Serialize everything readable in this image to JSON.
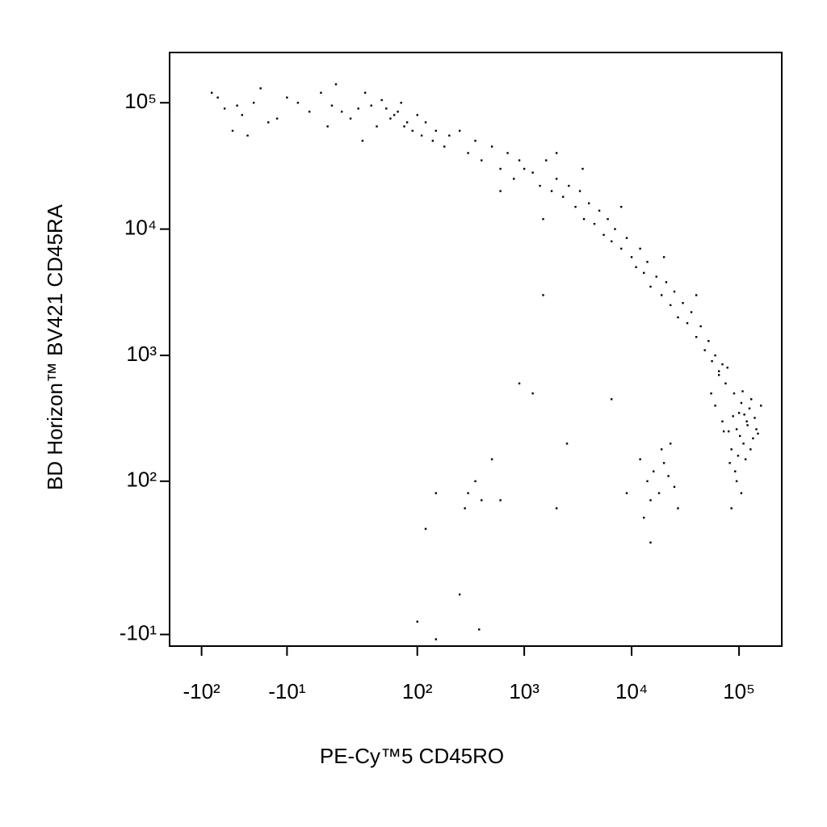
{
  "chart_data": {
    "type": "scatter",
    "x_label": "PE-Cy™5 CD45RO",
    "y_label": "BD Horizon™ BV421 CD45RA",
    "xscale": "biexponential",
    "yscale": "biexponential",
    "color": "#000000",
    "xlim": [
      -200,
      250000
    ],
    "ylim": [
      -15,
      250000
    ],
    "xticks": [
      {
        "value": -100,
        "label": "-10²"
      },
      {
        "value": -10,
        "label": "-10¹"
      },
      {
        "value": 100,
        "label": "10²"
      },
      {
        "value": 1000,
        "label": "10³"
      },
      {
        "value": 10000,
        "label": "10⁴"
      },
      {
        "value": 100000,
        "label": "10⁵"
      }
    ],
    "yticks": [
      {
        "value": -10,
        "label": "-10¹"
      },
      {
        "value": 100,
        "label": "10²"
      },
      {
        "value": 1000,
        "label": "10³"
      },
      {
        "value": 10000,
        "label": "10⁴"
      },
      {
        "value": 100000,
        "label": "10⁵"
      }
    ],
    "x": [
      -60,
      -40,
      -30,
      -20,
      -10,
      0,
      10,
      20,
      30,
      40,
      50,
      60,
      80,
      -50,
      -25,
      -5,
      15,
      35,
      55,
      75,
      100,
      120,
      150,
      -70,
      -35,
      5,
      25,
      45,
      65,
      90,
      -15,
      12,
      28,
      -45,
      70,
      110,
      140,
      180,
      -80,
      8,
      200,
      250,
      300,
      350,
      400,
      500,
      600,
      700,
      800,
      900,
      1000,
      1200,
      1400,
      1600,
      1800,
      2000,
      2300,
      2600,
      3000,
      3300,
      3600,
      4000,
      4500,
      5000,
      5500,
      6000,
      6500,
      7000,
      8000,
      9000,
      10000,
      11000,
      12000,
      13000,
      14000,
      15000,
      17000,
      19000,
      21000,
      23000,
      25000,
      27000,
      30000,
      33000,
      36000,
      40000,
      44000,
      48000,
      52000,
      56000,
      60000,
      65000,
      70000,
      3500,
      2000,
      8000,
      1500,
      20000,
      40000,
      600,
      60000,
      70000,
      80000,
      90000,
      100000,
      110000,
      120000,
      130000,
      140000,
      150000,
      75000,
      85000,
      95000,
      105000,
      115000,
      125000,
      65000,
      135000,
      88000,
      98000,
      108000,
      118000,
      78000,
      145000,
      160000,
      55000,
      92000,
      102000,
      112000,
      72000,
      82000,
      128000,
      95000,
      105000,
      85000,
      12000,
      14000,
      16000,
      18000,
      20000,
      22000,
      25000,
      27000,
      15000,
      19000,
      23000,
      13000,
      300,
      350,
      400,
      280,
      500,
      600,
      150,
      120,
      100,
      150,
      380,
      250,
      2500,
      2000,
      900,
      6500,
      1500,
      1200,
      9000,
      15000
    ],
    "values": [
      90000,
      80000,
      100000,
      70000,
      110000,
      85000,
      95000,
      75000,
      120000,
      65000,
      90000,
      80000,
      70000,
      60000,
      130000,
      100000,
      85000,
      95000,
      75000,
      65000,
      80000,
      70000,
      60000,
      110000,
      55000,
      120000,
      90000,
      105000,
      85000,
      60000,
      75000,
      140000,
      50000,
      95000,
      100000,
      55000,
      50000,
      45000,
      120000,
      65000,
      55000,
      60000,
      40000,
      50000,
      35000,
      45000,
      30000,
      40000,
      25000,
      35000,
      30000,
      28000,
      22000,
      35000,
      20000,
      25000,
      18000,
      22000,
      15000,
      20000,
      12000,
      16000,
      11000,
      14000,
      9000,
      12000,
      8000,
      10000,
      7000,
      8500,
      6000,
      5000,
      7000,
      4500,
      5500,
      3500,
      4200,
      3000,
      3800,
      2500,
      3200,
      2000,
      2600,
      1800,
      2200,
      1400,
      1700,
      1100,
      1300,
      900,
      1000,
      750,
      850,
      30000,
      40000,
      15000,
      12000,
      6000,
      3000,
      20000,
      400,
      300,
      250,
      500,
      350,
      200,
      280,
      450,
      320,
      240,
      600,
      180,
      260,
      420,
      150,
      380,
      700,
      220,
      330,
      160,
      520,
      300,
      800,
      260,
      400,
      500,
      120,
      230,
      340,
      250,
      140,
      180,
      100,
      80,
      60,
      150,
      100,
      120,
      80,
      140,
      110,
      90,
      60,
      70,
      180,
      200,
      50,
      80,
      100,
      70,
      60,
      150,
      70,
      80,
      40,
      -5,
      -12,
      -8,
      5,
      200,
      60,
      600,
      450,
      3000,
      500,
      80,
      30
    ]
  }
}
